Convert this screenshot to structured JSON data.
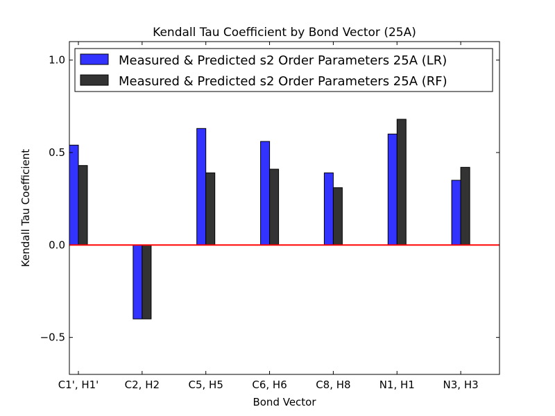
{
  "chart_data": {
    "type": "bar",
    "title": "Kendall Tau Coefficient by Bond Vector (25A)",
    "xlabel": "Bond Vector",
    "ylabel": "Kendall Tau Coefficient",
    "ylim": [
      -0.7,
      1.1
    ],
    "yticks": [
      -0.5,
      0.0,
      0.5,
      1.0
    ],
    "ytick_labels": [
      "−0.5",
      "0.0",
      "0.5",
      "1.0"
    ],
    "categories": [
      "C1', H1'",
      "C2, H2",
      "C5, H5",
      "C6, H6",
      "C8, H8",
      "N1, H1",
      "N3, H3"
    ],
    "series": [
      {
        "name": "Measured & Predicted s2 Order Parameters 25A (LR)",
        "color": "#3333ff",
        "values": [
          0.54,
          -0.4,
          0.63,
          0.56,
          0.39,
          0.6,
          0.35
        ]
      },
      {
        "name": "Measured & Predicted s2 Order Parameters 25A (RF)",
        "color": "#333333",
        "values": [
          0.43,
          -0.4,
          0.39,
          0.41,
          0.31,
          0.68,
          0.42
        ]
      }
    ],
    "reference_line": {
      "y": 0.0,
      "color": "#ff0000"
    },
    "legend": "top",
    "grid": false
  }
}
